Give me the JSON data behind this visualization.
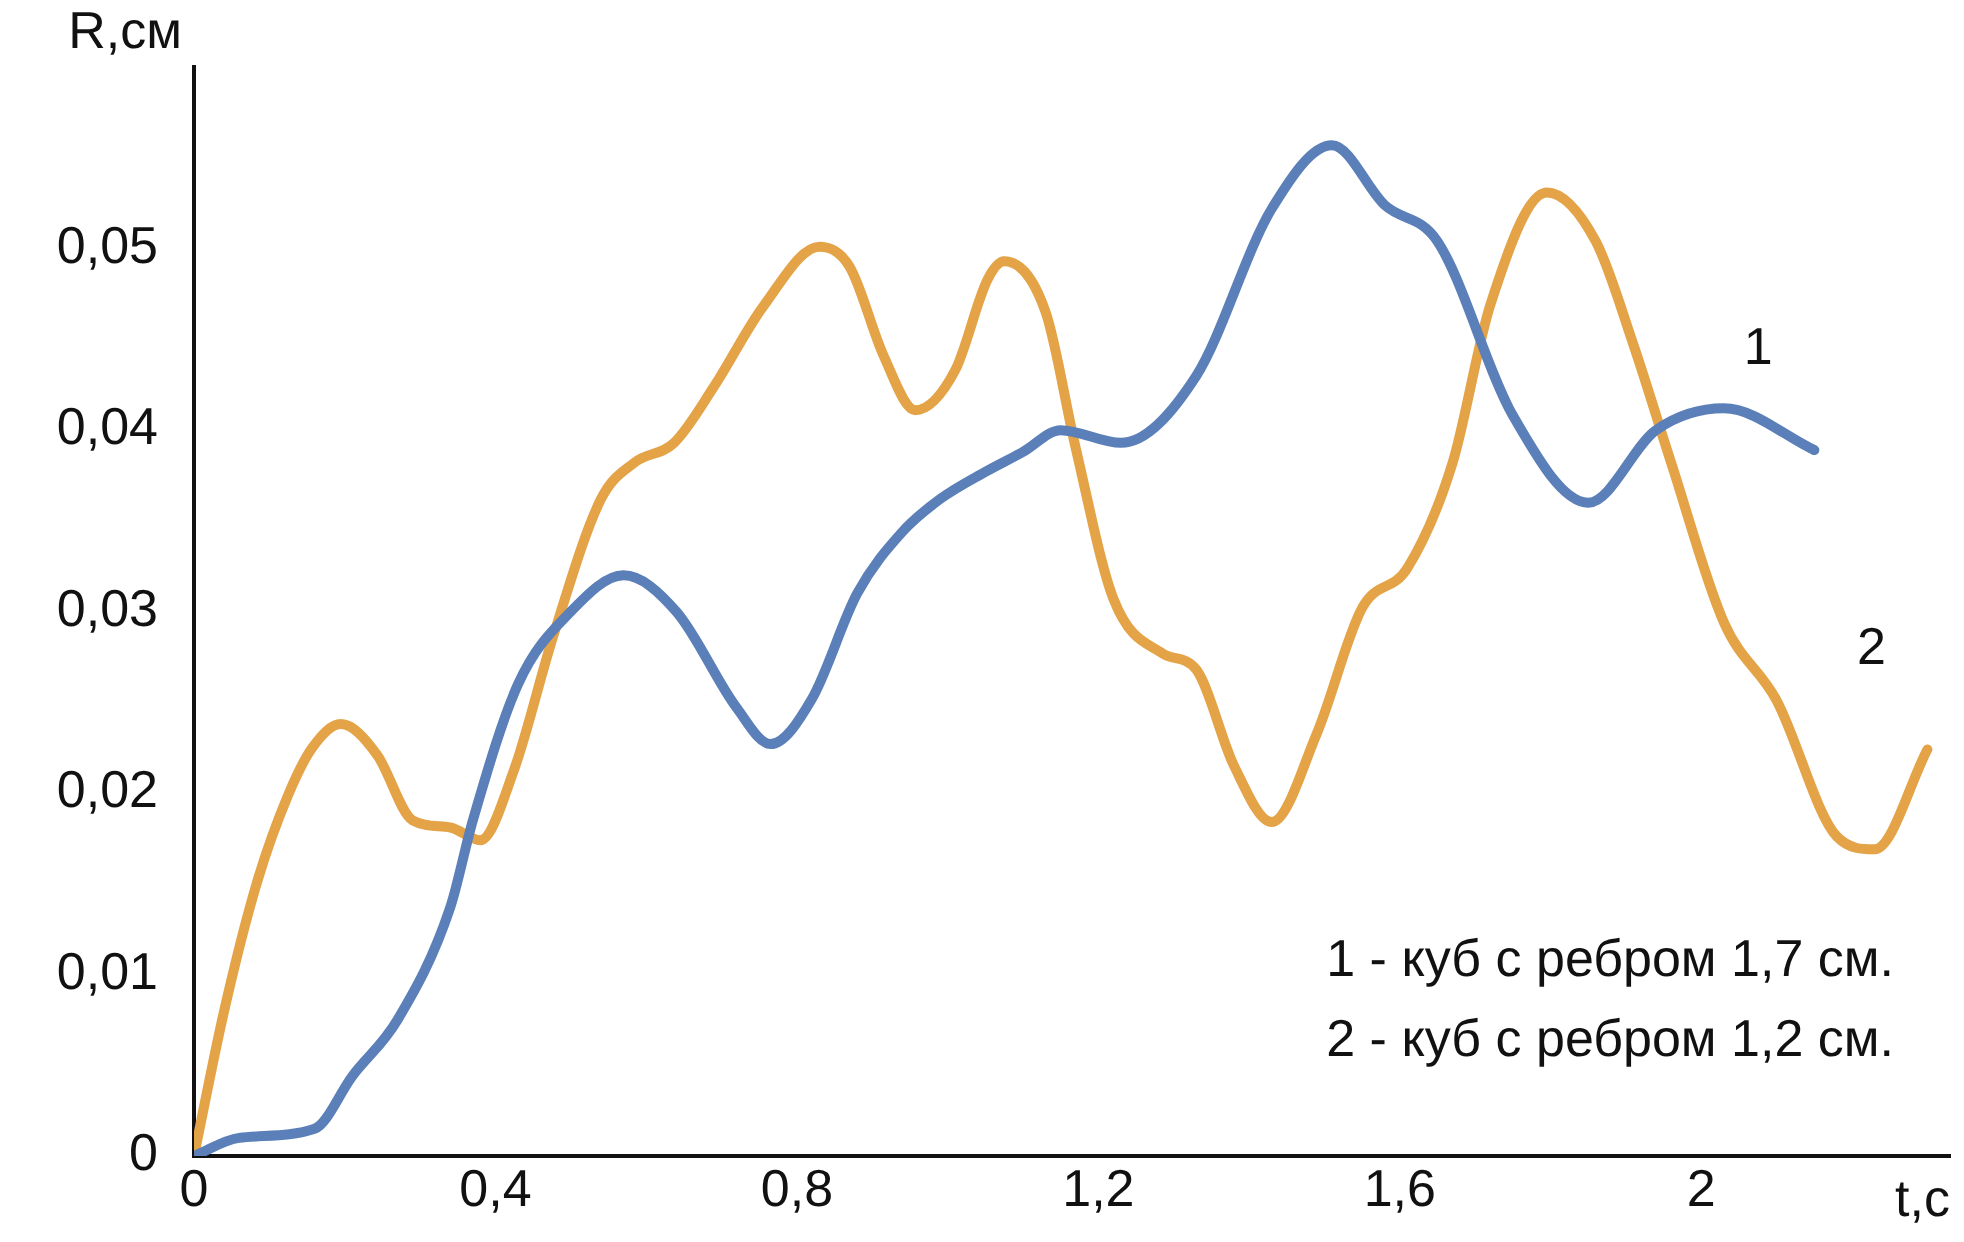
{
  "chart_data": {
    "type": "line",
    "xlabel": "t,c",
    "ylabel": "R,см",
    "xlim": [
      0,
      2.33
    ],
    "ylim": [
      0,
      0.06
    ],
    "xticks": [
      {
        "value": 0,
        "label": "0"
      },
      {
        "value": 0.4,
        "label": "0,4"
      },
      {
        "value": 0.8,
        "label": "0,8"
      },
      {
        "value": 1.2,
        "label": "1,2"
      },
      {
        "value": 1.6,
        "label": "1,6"
      },
      {
        "value": 2,
        "label": "2"
      }
    ],
    "yticks": [
      {
        "value": 0,
        "label": "0"
      },
      {
        "value": 0.01,
        "label": "0,01"
      },
      {
        "value": 0.02,
        "label": "0,02"
      },
      {
        "value": 0.03,
        "label": "0,03"
      },
      {
        "value": 0.04,
        "label": "0,04"
      },
      {
        "value": 0.05,
        "label": "0,05"
      }
    ],
    "grid": false,
    "legend": false,
    "marker": "none",
    "line_style": "solid",
    "series": [
      {
        "name": "1",
        "color": "#5b7fb8",
        "x": [
          0,
          0.06,
          0.16,
          0.21,
          0.27,
          0.34,
          0.37,
          0.43,
          0.5,
          0.57,
          0.64,
          0.72,
          0.765,
          0.82,
          0.88,
          0.94,
          0.99,
          1.05,
          1.1,
          1.15,
          1.23,
          1.33,
          1.43,
          1.51,
          1.58,
          1.65,
          1.75,
          1.85,
          1.94,
          2.03,
          2.15
        ],
        "values": [
          0,
          0.001,
          0.0015,
          0.0044,
          0.0075,
          0.0137,
          0.0185,
          0.026,
          0.03,
          0.032,
          0.03,
          0.0247,
          0.0227,
          0.0252,
          0.031,
          0.0344,
          0.0362,
          0.0377,
          0.0388,
          0.04,
          0.0393,
          0.043,
          0.0522,
          0.0557,
          0.0524,
          0.0504,
          0.0408,
          0.036,
          0.04,
          0.0412,
          0.0389
        ]
      },
      {
        "name": "2",
        "color": "#e3a346",
        "x": [
          0,
          0.04,
          0.083,
          0.125,
          0.157,
          0.195,
          0.243,
          0.29,
          0.34,
          0.38,
          0.424,
          0.477,
          0.54,
          0.584,
          0.637,
          0.69,
          0.755,
          0.83,
          0.87,
          0.915,
          0.957,
          1.01,
          1.053,
          1.075,
          1.13,
          1.17,
          1.22,
          1.285,
          1.33,
          1.38,
          1.43,
          1.49,
          1.55,
          1.61,
          1.67,
          1.72,
          1.795,
          1.86,
          1.91,
          1.96,
          2.03,
          2.1,
          2.18,
          2.23,
          2.3
        ],
        "values": [
          0,
          0.008,
          0.015,
          0.0199,
          0.0225,
          0.0238,
          0.0221,
          0.0185,
          0.0181,
          0.0174,
          0.0212,
          0.0287,
          0.0362,
          0.0382,
          0.0393,
          0.0424,
          0.0468,
          0.0501,
          0.049,
          0.0441,
          0.0411,
          0.0433,
          0.0483,
          0.0493,
          0.0465,
          0.039,
          0.0307,
          0.0277,
          0.0268,
          0.0215,
          0.0184,
          0.0233,
          0.0302,
          0.0324,
          0.0382,
          0.0469,
          0.0531,
          0.0504,
          0.0447,
          0.0382,
          0.0294,
          0.0251,
          0.0176,
          0.0169,
          0.0224
        ]
      }
    ],
    "annotations": [
      "1 - куб с ребром 1,7 см.",
      "2 - куб с ребром 1,2 см."
    ]
  }
}
